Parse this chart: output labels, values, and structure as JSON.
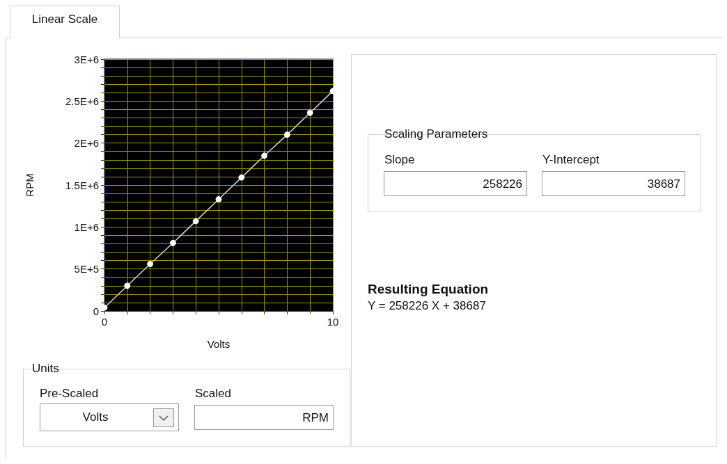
{
  "chart_data": {
    "type": "line",
    "xlabel": "Volts",
    "ylabel": "RPM",
    "x": [
      0,
      1,
      2,
      3,
      4,
      5,
      6,
      7,
      8,
      9,
      10
    ],
    "series": [
      {
        "color": "#d9d9d9",
        "values": [
          40000,
          300000,
          560000,
          810000,
          1070000,
          1330000,
          1590000,
          1850000,
          2100000,
          2360000,
          2620000
        ]
      }
    ],
    "xlim": [
      0,
      10
    ],
    "xticks": [
      0,
      {
        "value": 1,
        "label": null
      },
      {
        "value": 2,
        "label": null
      },
      {
        "value": 3,
        "label": null
      },
      {
        "value": 4,
        "label": null
      },
      {
        "value": 5,
        "label": null
      },
      {
        "value": 6,
        "label": null
      },
      {
        "value": 7,
        "label": null
      },
      {
        "value": 8,
        "label": null
      },
      {
        "value": 9,
        "label": null
      },
      10
    ],
    "ylim": [
      0,
      3000000
    ],
    "yticks": [
      0,
      {
        "value": 100000,
        "label": null
      },
      {
        "value": 200000,
        "label": null
      },
      {
        "value": 300000,
        "label": null
      },
      {
        "value": 400000,
        "label": null
      },
      {
        "value": 500000,
        "label": "5E+5"
      },
      {
        "value": 600000,
        "label": null
      },
      {
        "value": 700000,
        "label": null
      },
      {
        "value": 800000,
        "label": null
      },
      {
        "value": 900000,
        "label": null
      },
      {
        "value": 1000000,
        "label": "1E+6"
      },
      {
        "value": 1100000,
        "label": null
      },
      {
        "value": 1200000,
        "label": null
      },
      {
        "value": 1300000,
        "label": null
      },
      {
        "value": 1400000,
        "label": null
      },
      {
        "value": 1500000,
        "label": "1.5E+6"
      },
      {
        "value": 1600000,
        "label": null
      },
      {
        "value": 1700000,
        "label": null
      },
      {
        "value": 1800000,
        "label": null
      },
      {
        "value": 1900000,
        "label": null
      },
      {
        "value": 2000000,
        "label": "2E+6"
      },
      {
        "value": 2100000,
        "label": null
      },
      {
        "value": 2200000,
        "label": null
      },
      {
        "value": 2300000,
        "label": null
      },
      {
        "value": 2400000,
        "label": null
      },
      {
        "value": 2500000,
        "label": "2.5E+6"
      },
      {
        "value": 2600000,
        "label": null
      },
      {
        "value": 2700000,
        "label": null
      },
      {
        "value": 2800000,
        "label": null
      },
      {
        "value": 2900000,
        "label": null
      },
      {
        "value": 3000000,
        "label": "3E+6"
      }
    ],
    "grid": true,
    "marker": "circle",
    "line_style": "solid",
    "annotations": [
      "Linear Scale",
      "Scaling Parameters",
      "Slope",
      "258226",
      "Y-Intercept",
      "38687",
      "Resulting Equation",
      "Y = 258226 X + 38687",
      "Units",
      "Pre-Scaled",
      "Volts",
      "Scaled",
      "RPM"
    ]
  }
}
